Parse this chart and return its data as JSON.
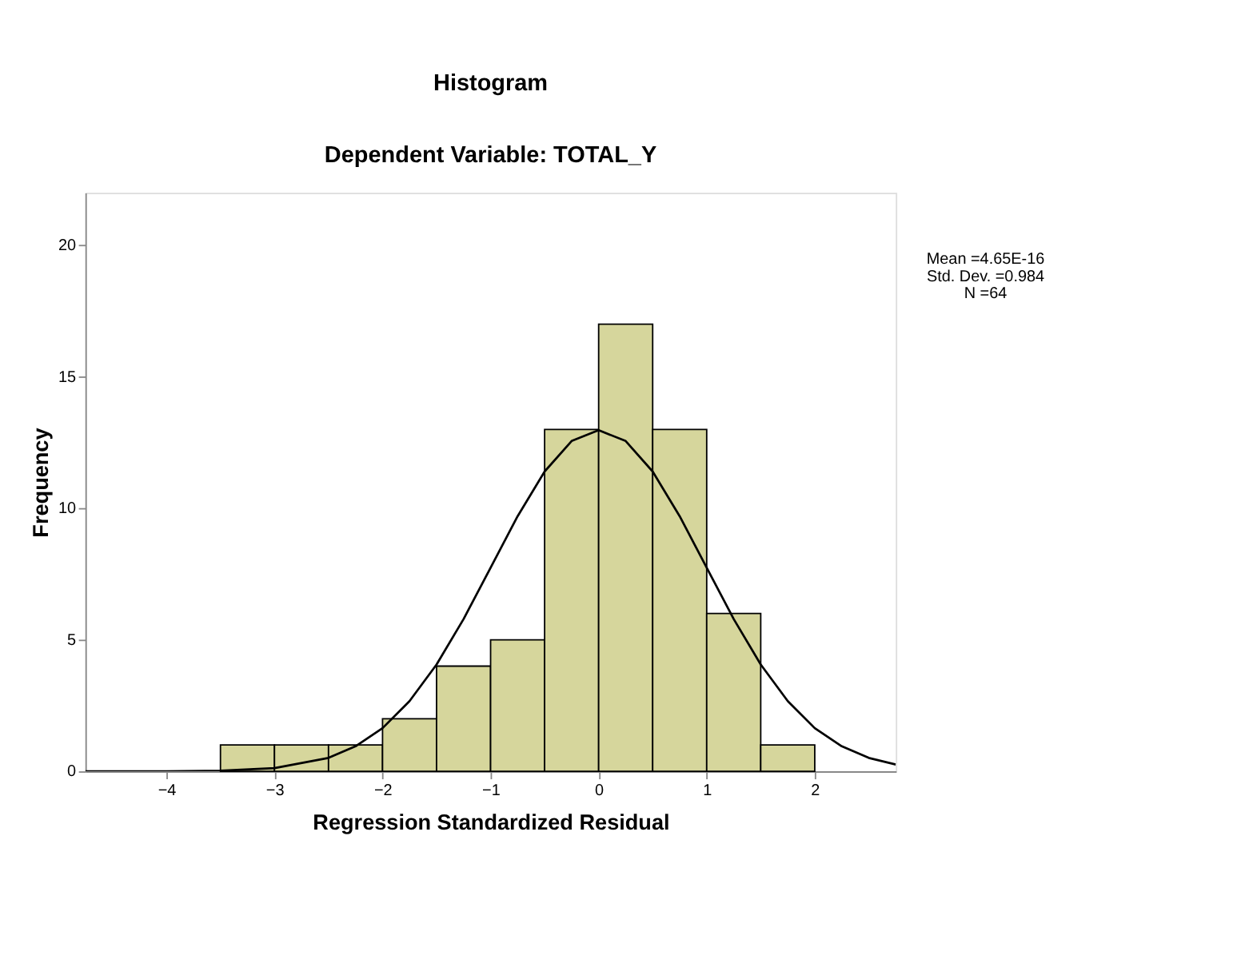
{
  "chart_data": {
    "type": "histogram",
    "title": "Histogram",
    "subtitle": "Dependent Variable: TOTAL_Y",
    "xlabel": "Regression Standardized Residual",
    "ylabel": "Frequency",
    "bins": [
      -3.5,
      -3.0,
      -2.5,
      -2.0,
      -1.5,
      -1.0,
      -0.5,
      0.0,
      0.5,
      1.0,
      1.5,
      2.0
    ],
    "values": [
      1,
      1,
      1,
      2,
      4,
      5,
      13,
      17,
      13,
      6,
      1
    ],
    "color": "#d6d69c",
    "series": [
      {
        "type": "line",
        "color": "#000000",
        "marker": "none",
        "x": [
          -4.75,
          -4.0,
          -3.5,
          -3.0,
          -2.5,
          -2.25,
          -2.0,
          -1.75,
          -1.5,
          -1.25,
          -1.0,
          -0.75,
          -0.5,
          -0.25,
          0.0,
          0.25,
          0.5,
          0.75,
          1.0,
          1.25,
          1.5,
          1.75,
          2.0,
          2.25,
          2.5,
          2.75
        ],
        "values": [
          0.0,
          0.0,
          0.02,
          0.12,
          0.51,
          0.95,
          1.64,
          2.67,
          4.06,
          5.79,
          7.74,
          9.7,
          11.4,
          12.56,
          12.97,
          12.56,
          11.4,
          9.7,
          7.74,
          5.79,
          4.06,
          2.67,
          1.64,
          0.95,
          0.51,
          0.26
        ]
      }
    ],
    "xlim": [
      -4.75,
      2.75
    ],
    "xticks": [
      -4,
      -3,
      -2,
      -1,
      0,
      1,
      2
    ],
    "ylim": [
      0,
      22
    ],
    "yticks": [
      0,
      5,
      10,
      15,
      20
    ],
    "grid": false,
    "annotations": [
      "Mean =4.65E-16",
      "Std. Dev. =0.984",
      "N =64"
    ]
  }
}
